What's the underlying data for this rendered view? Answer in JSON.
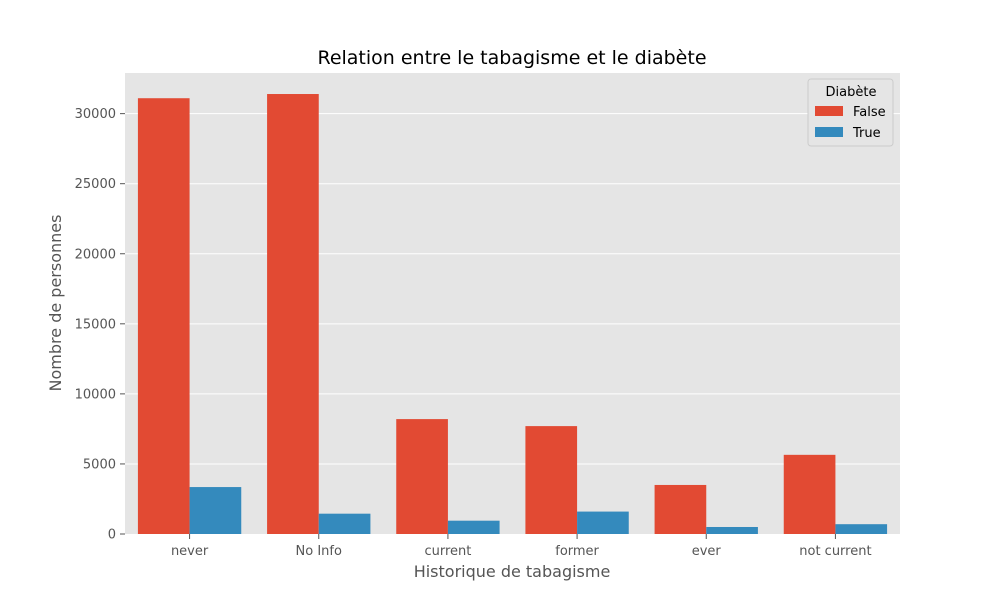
{
  "chart_data": {
    "type": "bar",
    "title": "Relation entre le tabagisme et le diabète",
    "xlabel": "Historique de tabagisme",
    "ylabel": "Nombre de personnes",
    "categories": [
      "never",
      "No Info",
      "current",
      "former",
      "ever",
      "not current"
    ],
    "series": [
      {
        "name": "False",
        "color": "#e24a33",
        "values": [
          31100,
          31400,
          8200,
          7700,
          3500,
          5650
        ]
      },
      {
        "name": "True",
        "color": "#348abd",
        "values": [
          3350,
          1450,
          950,
          1600,
          500,
          700
        ]
      }
    ],
    "ylim": [
      0,
      32900
    ],
    "yticks": [
      0,
      5000,
      10000,
      15000,
      20000,
      25000,
      30000
    ],
    "grid": true,
    "legend": {
      "title": "Diabète",
      "placement": "top-right"
    }
  }
}
